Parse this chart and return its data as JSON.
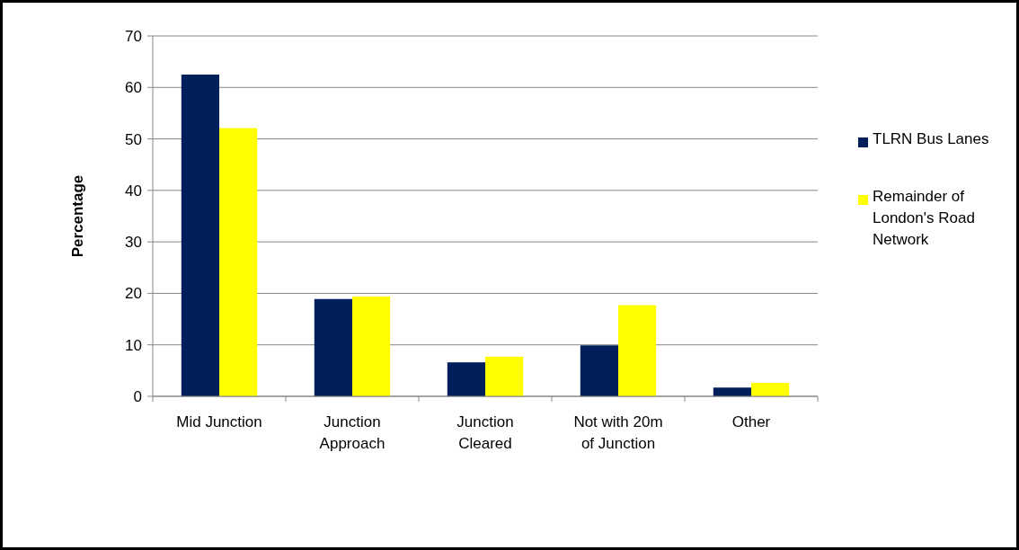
{
  "chart_data": {
    "type": "bar",
    "ylabel": "Percentage",
    "categories": [
      "Mid Junction",
      "Junction Approach",
      "Junction Cleared",
      "Not with 20m of Junction",
      "Other"
    ],
    "series": [
      {
        "name": "TLRN Bus Lanes",
        "color": "#001f5b",
        "values": [
          62.5,
          18.9,
          6.6,
          9.9,
          1.7
        ]
      },
      {
        "name": "Remainder of London's Road Network",
        "color": "#ffff00",
        "values": [
          52.1,
          19.4,
          7.7,
          17.7,
          2.6
        ]
      }
    ],
    "ylim": [
      0,
      70
    ],
    "yticks": [
      0,
      10,
      20,
      30,
      40,
      50,
      60,
      70
    ],
    "grid": "y",
    "legend": "right"
  }
}
